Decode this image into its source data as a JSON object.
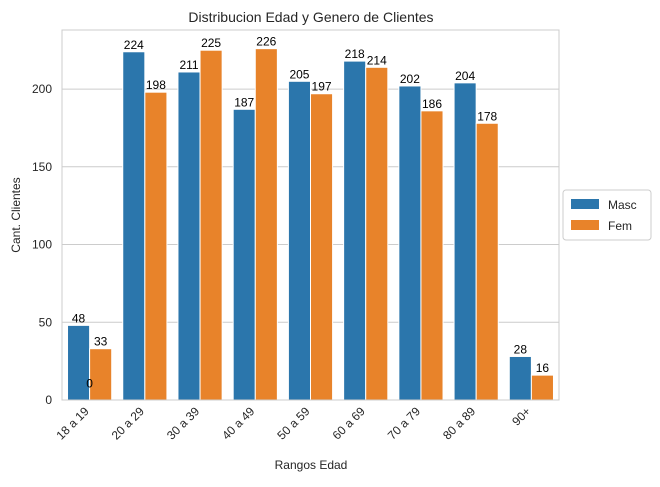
{
  "chart_data": {
    "type": "bar",
    "title": "Distribucion Edad y Genero de Clientes",
    "xlabel": "Rangos Edad",
    "ylabel": "Cant. Clientes",
    "categories": [
      "18 a 19",
      "20 a 29",
      "30 a 39",
      "40 a 49",
      "50 a 59",
      "60 a 69",
      "70 a 79",
      "80 a 89",
      "90+"
    ],
    "series": [
      {
        "name": "Masc",
        "color": "#2b76ac",
        "values": [
          48,
          224,
          211,
          187,
          205,
          218,
          202,
          204,
          28
        ]
      },
      {
        "name": "Fem",
        "color": "#e8832a",
        "values": [
          33,
          198,
          225,
          226,
          197,
          214,
          186,
          178,
          16
        ]
      }
    ],
    "yticks": [
      0,
      50,
      100,
      150,
      200
    ],
    "ylim": [
      0,
      238
    ],
    "grid": true,
    "legend_position": "right",
    "annotations": [
      {
        "text": "0",
        "category": "18 a 19",
        "y": 6
      }
    ]
  }
}
